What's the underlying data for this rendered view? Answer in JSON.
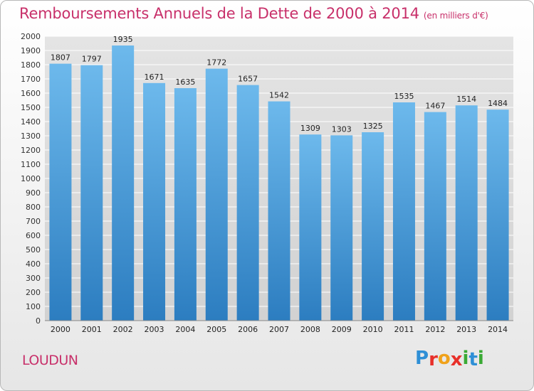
{
  "header": {
    "title": "Remboursements Annuels de la Dette de 2000 à 2014",
    "subtitle": "(en milliers d'€)"
  },
  "footer": {
    "city": "LOUDUN",
    "logo_letters": [
      "P",
      "r",
      "o",
      "x",
      "i",
      "t",
      "i"
    ],
    "logo_colors": [
      "#2e8fd6",
      "#e8302a",
      "#f0a21b",
      "#e8302a",
      "#3aaa35",
      "#2e8fd6",
      "#3aaa35"
    ]
  },
  "colors": {
    "bar_top": "#6db9ec",
    "bar_bottom": "#2c7dc0",
    "grid": "#ffffff",
    "accent": "#c8306a"
  },
  "chart_data": {
    "type": "bar",
    "title": "Remboursements Annuels de la Dette de 2000 à 2014",
    "subtitle": "(en milliers d'€)",
    "categories": [
      "2000",
      "2001",
      "2002",
      "2003",
      "2004",
      "2005",
      "2006",
      "2007",
      "2008",
      "2009",
      "2010",
      "2011",
      "2012",
      "2013",
      "2014"
    ],
    "values": [
      1807,
      1797,
      1935,
      1671,
      1635,
      1772,
      1657,
      1542,
      1309,
      1303,
      1325,
      1535,
      1467,
      1514,
      1484
    ],
    "ylim": [
      0,
      2000
    ],
    "yticks": [
      0,
      100,
      200,
      300,
      400,
      500,
      600,
      700,
      800,
      900,
      1000,
      1100,
      1200,
      1300,
      1400,
      1500,
      1600,
      1700,
      1800,
      1900,
      2000
    ],
    "grid": true,
    "xlabel": "",
    "ylabel": ""
  }
}
